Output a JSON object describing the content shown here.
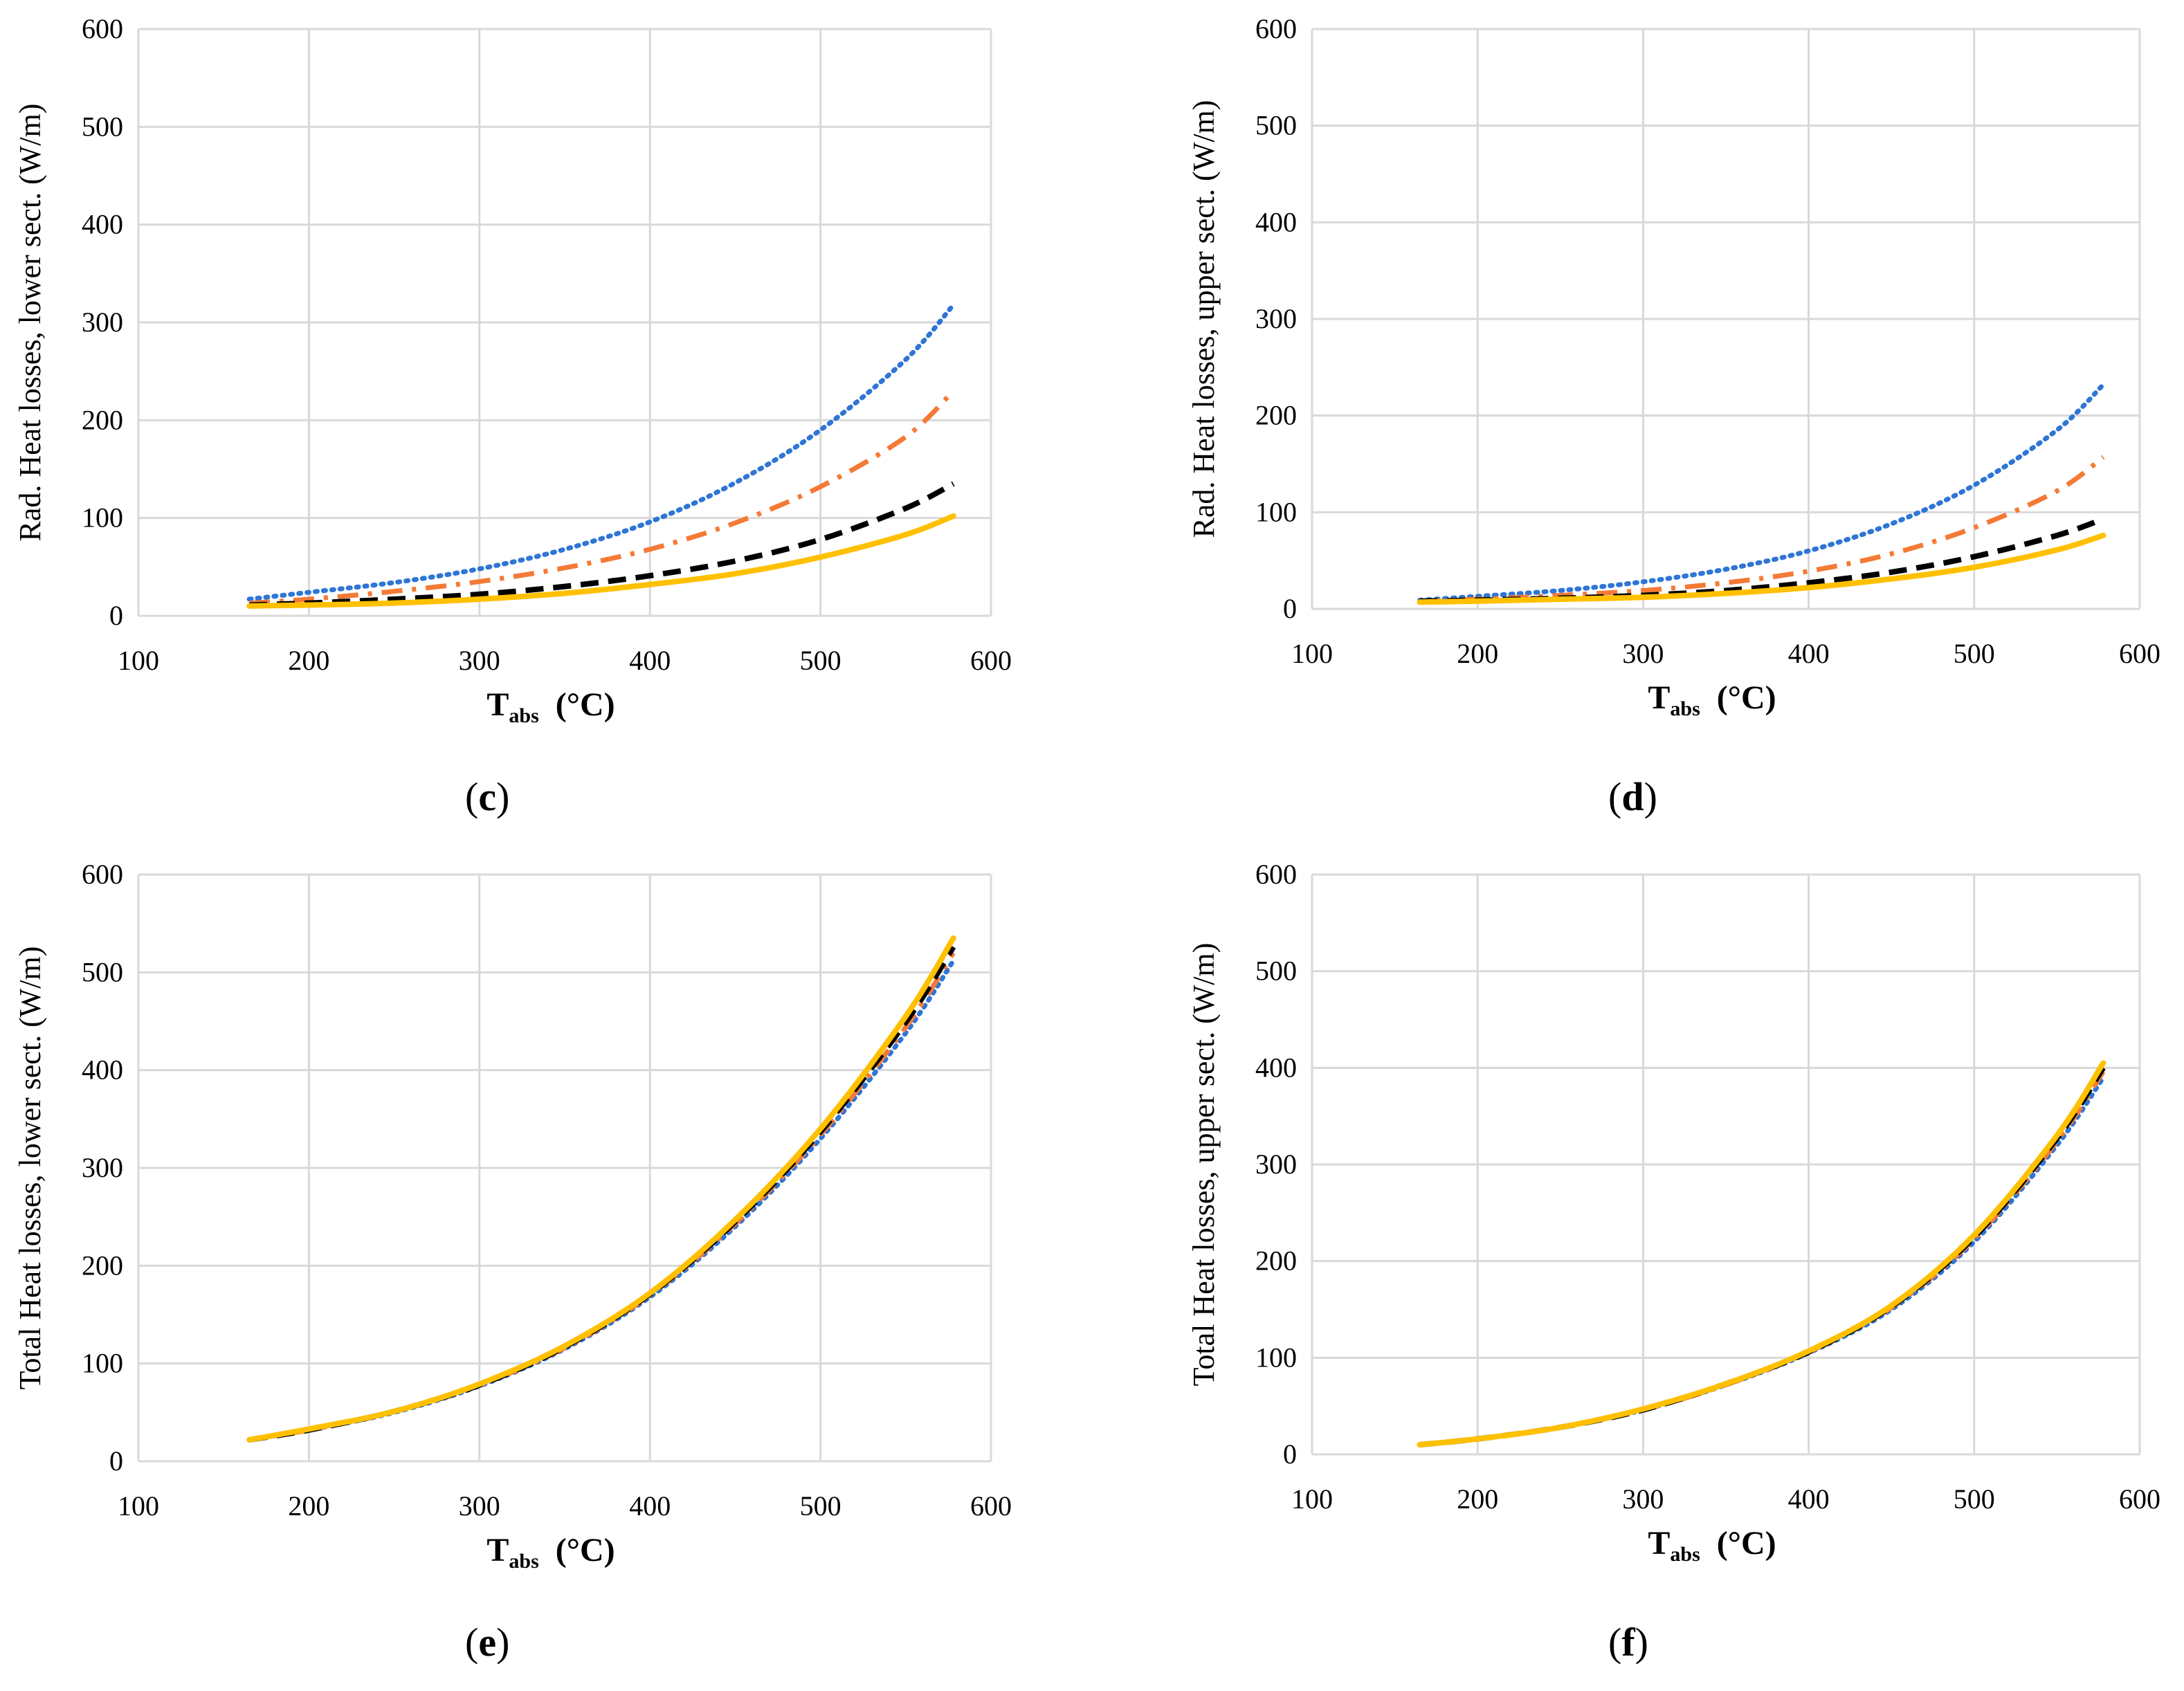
{
  "chart_data": [
    {
      "id": "c",
      "type": "line",
      "panel_label": "c",
      "ylabel": "Rad. Heat losses, lower sect. (W/m)",
      "xlabel_main": "T",
      "xlabel_sub": "abs",
      "xlabel_unit": "(°C)",
      "xlim": [
        100,
        600
      ],
      "ylim": [
        0,
        600
      ],
      "xticks": [
        100,
        200,
        300,
        400,
        500,
        600
      ],
      "yticks": [
        0,
        100,
        200,
        300,
        400,
        500,
        600
      ],
      "grid": true,
      "series": [
        {
          "style": "dotted",
          "color": "#2e75d6",
          "x": [
            165,
            200,
            250,
            300,
            350,
            400,
            450,
            500,
            550,
            578
          ],
          "y": [
            17,
            24,
            34,
            48,
            68,
            96,
            136,
            190,
            262,
            318
          ]
        },
        {
          "style": "dashdot",
          "color": "#f47a36",
          "x": [
            165,
            200,
            250,
            300,
            350,
            400,
            450,
            500,
            550,
            578
          ],
          "y": [
            13,
            17,
            25,
            35,
            49,
            68,
            95,
            132,
            183,
            230
          ]
        },
        {
          "style": "dashed",
          "color": "#000000",
          "x": [
            165,
            200,
            250,
            300,
            350,
            400,
            450,
            500,
            550,
            578
          ],
          "y": [
            11,
            13,
            17,
            22,
            30,
            41,
            56,
            78,
            110,
            135
          ]
        },
        {
          "style": "solid",
          "color": "#ffc000",
          "x": [
            165,
            200,
            250,
            300,
            350,
            400,
            450,
            500,
            550,
            578
          ],
          "y": [
            10,
            11,
            13,
            17,
            23,
            32,
            43,
            60,
            83,
            102
          ]
        }
      ]
    },
    {
      "id": "d",
      "type": "line",
      "panel_label": "d",
      "ylabel": "Rad. Heat losses, upper sect. (W/m)",
      "xlabel_main": "T",
      "xlabel_sub": "abs",
      "xlabel_unit": "(°C)",
      "xlim": [
        100,
        600
      ],
      "ylim": [
        0,
        600
      ],
      "xticks": [
        100,
        200,
        300,
        400,
        500,
        600
      ],
      "yticks": [
        0,
        100,
        200,
        300,
        400,
        500,
        600
      ],
      "grid": true,
      "series": [
        {
          "style": "dotted",
          "color": "#2e75d6",
          "x": [
            165,
            200,
            250,
            300,
            350,
            400,
            450,
            500,
            550,
            578
          ],
          "y": [
            9,
            13,
            19,
            28,
            41,
            60,
            88,
            128,
            185,
            232
          ]
        },
        {
          "style": "dashdot",
          "color": "#f47a36",
          "x": [
            165,
            200,
            250,
            300,
            350,
            400,
            450,
            500,
            550,
            578
          ],
          "y": [
            8,
            10,
            14,
            19,
            27,
            39,
            57,
            84,
            122,
            157
          ]
        },
        {
          "style": "dashed",
          "color": "#000000",
          "x": [
            165,
            200,
            250,
            300,
            350,
            400,
            450,
            500,
            550,
            578
          ],
          "y": [
            8,
            9,
            11,
            14,
            19,
            27,
            38,
            54,
            76,
            93
          ]
        },
        {
          "style": "solid",
          "color": "#ffc000",
          "x": [
            165,
            200,
            250,
            300,
            350,
            400,
            450,
            500,
            550,
            578
          ],
          "y": [
            7,
            8,
            10,
            12,
            16,
            22,
            31,
            43,
            61,
            76
          ]
        }
      ]
    },
    {
      "id": "e",
      "type": "line",
      "panel_label": "e",
      "ylabel": "Total Heat losses, lower sect. (W/m)",
      "xlabel_main": "T",
      "xlabel_sub": "abs",
      "xlabel_unit": "(°C)",
      "xlim": [
        100,
        600
      ],
      "ylim": [
        0,
        600
      ],
      "xticks": [
        100,
        200,
        300,
        400,
        500,
        600
      ],
      "yticks": [
        0,
        100,
        200,
        300,
        400,
        500,
        600
      ],
      "grid": true,
      "series": [
        {
          "style": "dotted",
          "color": "#2e75d6",
          "x": [
            165,
            200,
            250,
            300,
            350,
            400,
            450,
            500,
            550,
            578
          ],
          "y": [
            22,
            32,
            50,
            77,
            115,
            168,
            240,
            330,
            438,
            512
          ]
        },
        {
          "style": "dashdot",
          "color": "#f47a36",
          "x": [
            165,
            200,
            250,
            300,
            350,
            400,
            450,
            500,
            550,
            578
          ],
          "y": [
            22,
            32,
            51,
            78,
            116,
            170,
            243,
            334,
            444,
            520
          ]
        },
        {
          "style": "dashed",
          "color": "#000000",
          "x": [
            165,
            200,
            250,
            300,
            350,
            400,
            450,
            500,
            550,
            578
          ],
          "y": [
            22,
            32,
            51,
            78,
            117,
            171,
            245,
            337,
            449,
            526
          ]
        },
        {
          "style": "solid",
          "color": "#ffc000",
          "x": [
            165,
            200,
            250,
            300,
            350,
            400,
            450,
            500,
            550,
            578
          ],
          "y": [
            22,
            33,
            51,
            79,
            118,
            172,
            247,
            340,
            455,
            535
          ]
        }
      ]
    },
    {
      "id": "f",
      "type": "line",
      "panel_label": "f",
      "ylabel": "Total Heat losses, upper sect. (W/m)",
      "xlabel_main": "T",
      "xlabel_sub": "abs",
      "xlabel_unit": "(°C)",
      "xlim": [
        100,
        600
      ],
      "ylim": [
        0,
        600
      ],
      "xticks": [
        100,
        200,
        300,
        400,
        500,
        600
      ],
      "yticks": [
        0,
        100,
        200,
        300,
        400,
        500,
        600
      ],
      "grid": true,
      "series": [
        {
          "style": "dotted",
          "color": "#2e75d6",
          "x": [
            165,
            200,
            250,
            300,
            350,
            400,
            450,
            500,
            550,
            578
          ],
          "y": [
            10,
            16,
            28,
            46,
            72,
            105,
            150,
            220,
            320,
            390
          ]
        },
        {
          "style": "dashdot",
          "color": "#f47a36",
          "x": [
            165,
            200,
            250,
            300,
            350,
            400,
            450,
            500,
            550,
            578
          ],
          "y": [
            10,
            16,
            28,
            46,
            72,
            106,
            152,
            223,
            324,
            396
          ]
        },
        {
          "style": "dashed",
          "color": "#000000",
          "x": [
            165,
            200,
            250,
            300,
            350,
            400,
            450,
            500,
            550,
            578
          ],
          "y": [
            10,
            16,
            28,
            46,
            73,
            106,
            153,
            225,
            327,
            400
          ]
        },
        {
          "style": "solid",
          "color": "#ffc000",
          "x": [
            165,
            200,
            250,
            300,
            350,
            400,
            450,
            500,
            550,
            578
          ],
          "y": [
            10,
            16,
            28,
            47,
            73,
            107,
            154,
            227,
            330,
            405
          ]
        }
      ]
    }
  ]
}
